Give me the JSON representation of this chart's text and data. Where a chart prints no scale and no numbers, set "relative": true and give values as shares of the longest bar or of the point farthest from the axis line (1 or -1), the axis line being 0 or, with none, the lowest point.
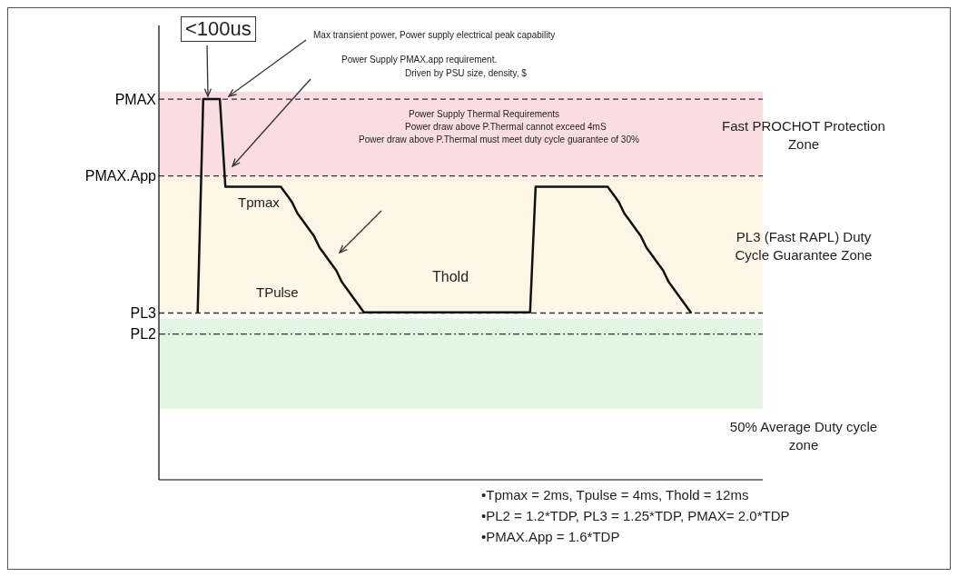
{
  "chart_data": {
    "type": "line",
    "relative": true,
    "color": "#111111",
    "marker": "none",
    "line_style": "solid",
    "categories": [
      null,
      null,
      null,
      null,
      null,
      null,
      null,
      null,
      null,
      null,
      null,
      null,
      null,
      null,
      null,
      null,
      null,
      null,
      null,
      null,
      null,
      null,
      null,
      null,
      null,
      null,
      null,
      null,
      null,
      null,
      null,
      null,
      null,
      null,
      null,
      null,
      null,
      null,
      null,
      null,
      null,
      null,
      null,
      null,
      null,
      null,
      null,
      null,
      null,
      null,
      null,
      null,
      null,
      null,
      null,
      null,
      null,
      null,
      null,
      null,
      null,
      null,
      null,
      null,
      null,
      null,
      null,
      null,
      null,
      null,
      null,
      null,
      null,
      null,
      null,
      null,
      null,
      null,
      null,
      null,
      null,
      null,
      null,
      null,
      null,
      null,
      null,
      null,
      null,
      null,
      null,
      null,
      null,
      null,
      null,
      null,
      null,
      null,
      null,
      null,
      null,
      null,
      null,
      null,
      null,
      null,
      null,
      null,
      null,
      null
    ],
    "values": [
      null,
      null,
      null,
      null,
      null,
      null,
      null,
      0.44,
      1,
      1,
      1,
      1,
      0.77,
      0.77,
      0.77,
      0.77,
      0.77,
      0.77,
      0.77,
      0.77,
      0.77,
      0.77,
      0.77,
      0.75,
      0.73,
      0.7,
      0.68,
      0.66,
      0.64,
      0.61,
      0.59,
      0.57,
      0.55,
      0.52,
      0.5,
      0.48,
      0.46,
      0.44,
      0.44,
      0.44,
      0.44,
      0.44,
      0.44,
      0.44,
      0.44,
      0.44,
      0.44,
      0.44,
      0.44,
      0.44,
      0.44,
      0.44,
      0.44,
      0.44,
      0.44,
      0.44,
      0.44,
      0.44,
      0.44,
      0.44,
      0.44,
      0.44,
      0.44,
      0.44,
      0.44,
      0.44,
      0.44,
      0.44,
      0.77,
      0.77,
      0.77,
      0.77,
      0.77,
      0.77,
      0.77,
      0.77,
      0.77,
      0.77,
      0.77,
      0.77,
      0.77,
      0.77,
      0.75,
      0.73,
      0.7,
      0.68,
      0.66,
      0.64,
      0.61,
      0.59,
      0.57,
      0.55,
      0.52,
      0.5,
      0.48,
      0.46,
      0.44,
      null,
      null,
      null,
      null,
      null,
      null,
      null,
      null,
      null,
      null,
      null,
      null,
      null
    ],
    "ref_lines": [
      {
        "axis": "y",
        "value": 1,
        "label": "PMAX",
        "color": "#333333",
        "line_style": "dashed"
      },
      {
        "axis": "y",
        "value": 0.798,
        "label": "PMAX.App",
        "color": "#333333",
        "line_style": "dashed"
      },
      {
        "axis": "y",
        "value": 0.438,
        "label": "PL3",
        "color": "#333333",
        "line_style": "dashed"
      },
      {
        "axis": "y",
        "value": 0.383,
        "label": "PL2",
        "color": "#333333",
        "line_style": "dotted"
      }
    ],
    "bands": [
      {
        "axis": "y",
        "from": 0.798,
        "to": 1.02,
        "label": "Fast PROCHOT Protection Zone",
        "color": "#fadde2"
      },
      {
        "axis": "y",
        "from": 0.438,
        "to": 0.798,
        "label": "PL3 (Fast RAPL) Duty Cycle Guarantee Zone",
        "color": "#fdf6e6"
      },
      {
        "axis": "y",
        "from": 0.186,
        "to": 0.424,
        "label": "50% Average Duty cycle zone",
        "color": "#e3f6e3"
      }
    ],
    "annotations": [
      "<100us",
      "Max transient power, Power supply electrical peak capability",
      "Power Supply PMAX.app requirement.",
      "Driven by PSU size, density, $",
      "Power Supply Thermal Requirements",
      "Power draw above P.Thermal cannot exceed 4mS",
      "Power draw above P.Thermal must meet duty cycle guarantee of 30%",
      "Tpmax",
      "TPulse",
      "Thold",
      "•Tpmax = 2ms, Tpulse = 4ms, Thold = 12ms",
      "•PL2 = 1.2*TDP, PL3 = 1.25*TDP, PMAX= 2.0*TDP",
      "•PMAX.App = 1.6*TDP"
    ]
  }
}
